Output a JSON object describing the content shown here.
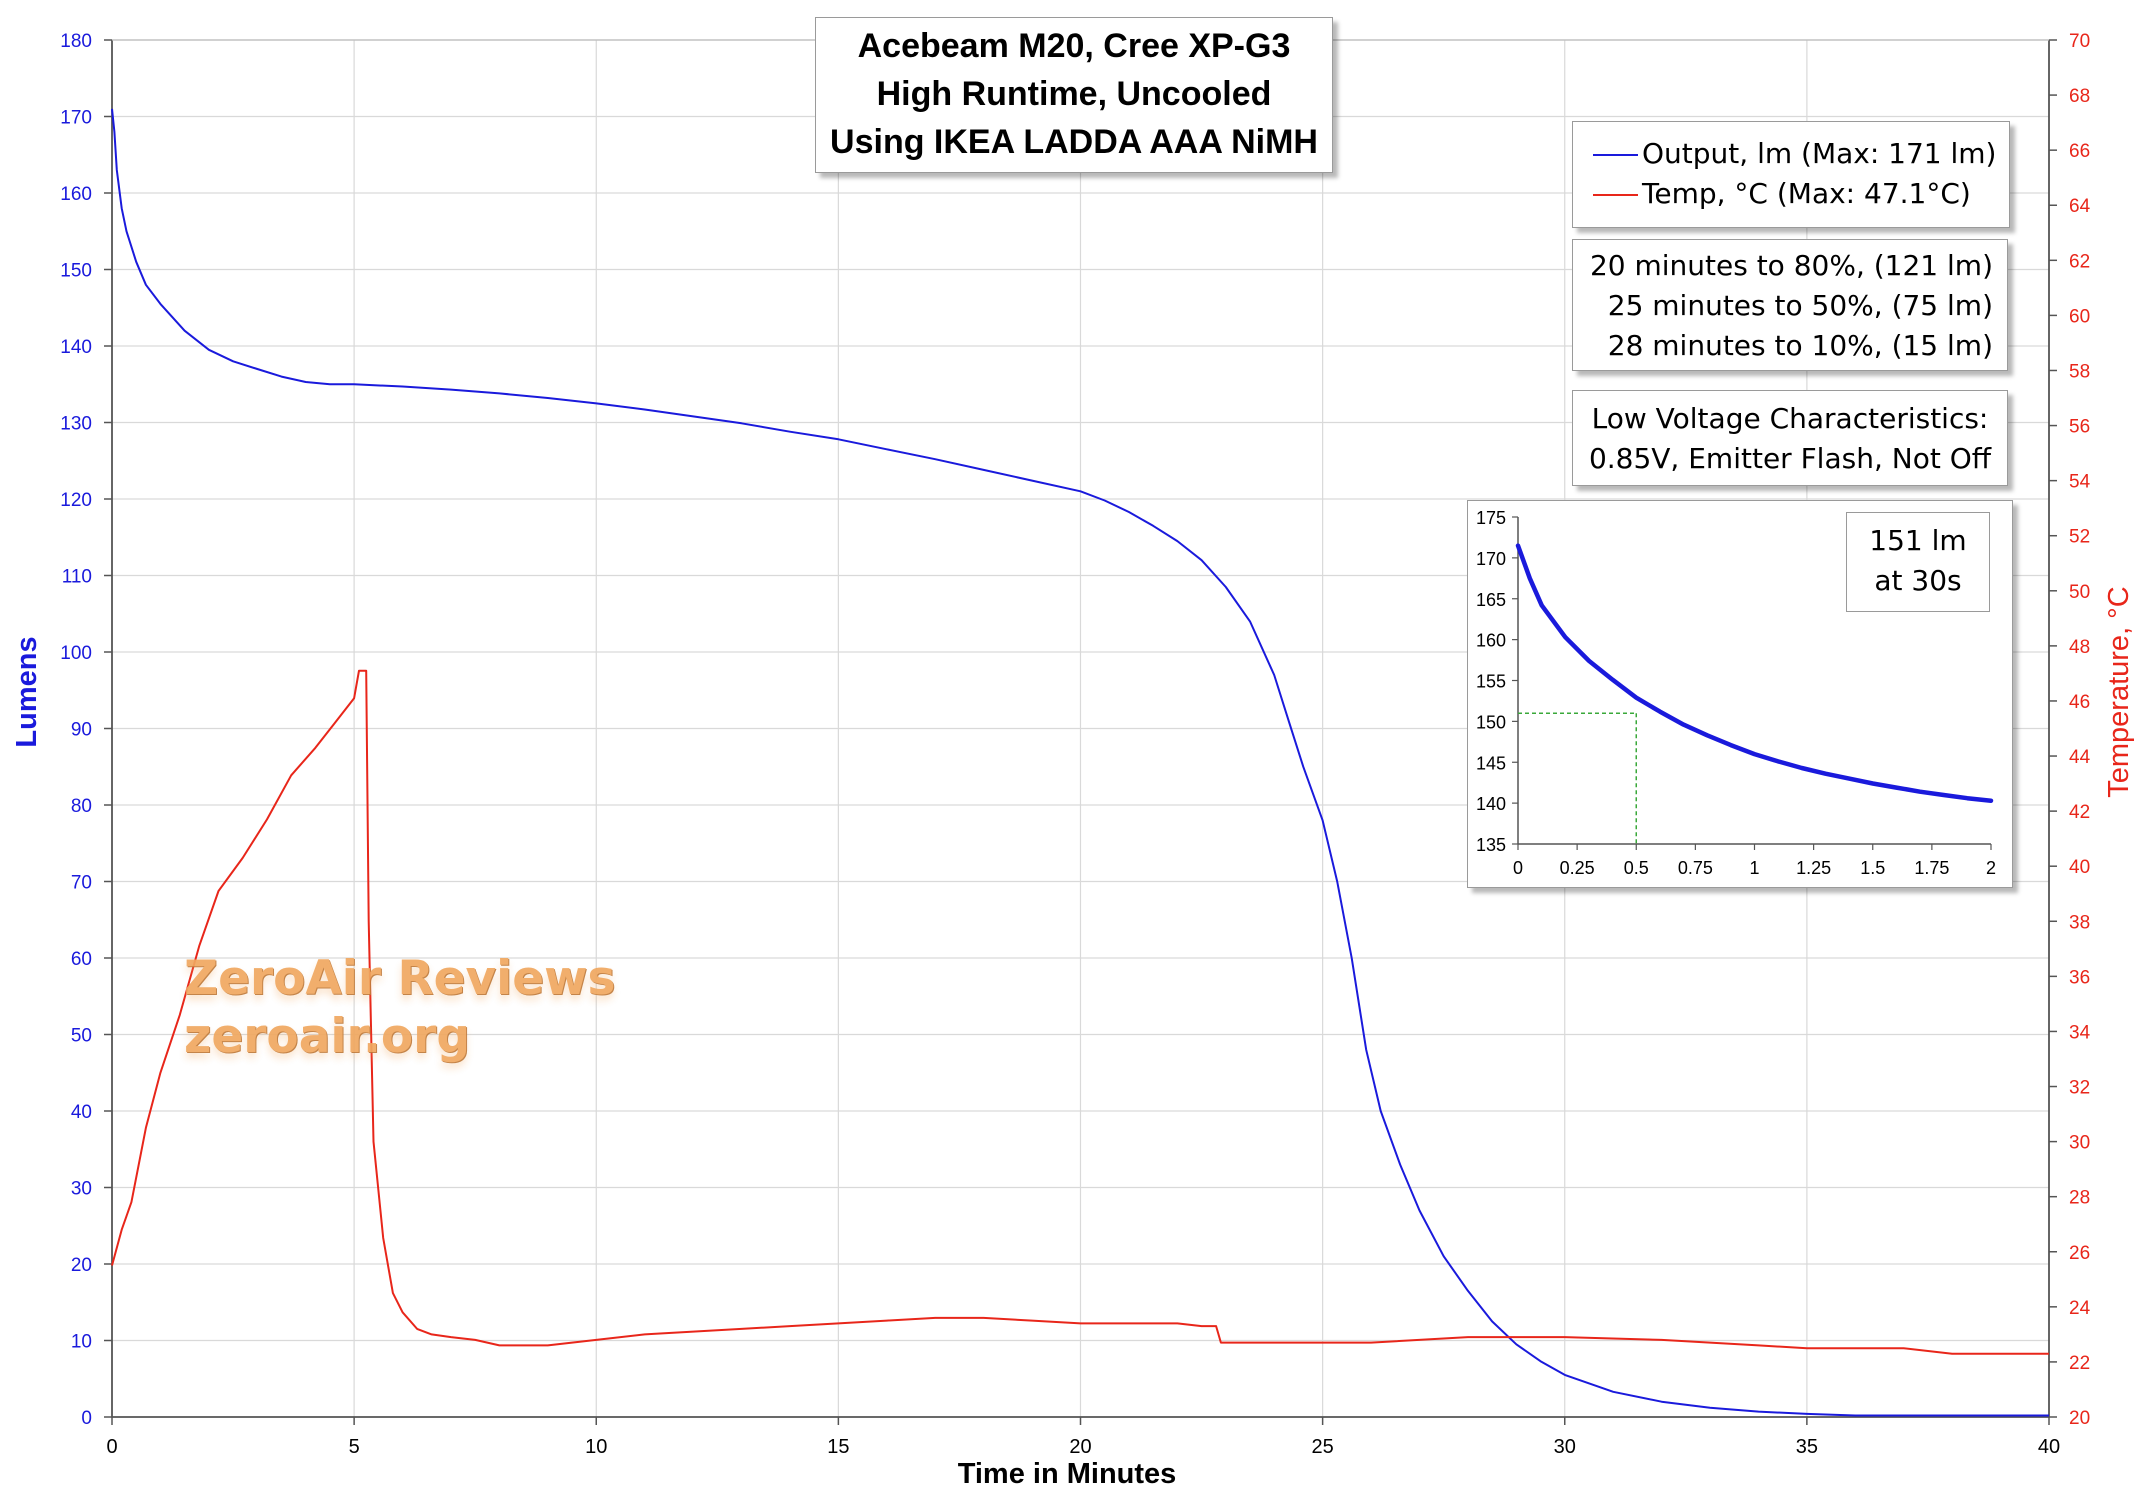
{
  "chart_data": {
    "type": "line",
    "title_lines": [
      "Acebeam M20, Cree XP-G3",
      "High Runtime, Uncooled",
      "Using IKEA LADDA AAA NiMH"
    ],
    "xlabel": "Time in Minutes",
    "ylabel": "Lumens",
    "y2label": "Temperature, °C",
    "xlim": [
      0,
      40
    ],
    "ylim": [
      0,
      180
    ],
    "y2lim": [
      20,
      70
    ],
    "x_ticks": [
      0,
      5,
      10,
      15,
      20,
      25,
      30,
      35,
      40
    ],
    "y_ticks": [
      0,
      10,
      20,
      30,
      40,
      50,
      60,
      70,
      80,
      90,
      100,
      110,
      120,
      130,
      140,
      150,
      160,
      170,
      180
    ],
    "y2_ticks": [
      20,
      22,
      24,
      26,
      28,
      30,
      32,
      34,
      36,
      38,
      40,
      42,
      44,
      46,
      48,
      50,
      52,
      54,
      56,
      58,
      60,
      62,
      64,
      66,
      68,
      70
    ],
    "grid": true,
    "series": [
      {
        "name": "Output, lm (Max: 171 lm)",
        "axis": "left",
        "color": "#1a1adc",
        "x": [
          0,
          0.05,
          0.1,
          0.2,
          0.3,
          0.5,
          0.7,
          1,
          1.5,
          2,
          2.5,
          3,
          3.5,
          4,
          4.5,
          5,
          6,
          7,
          8,
          9,
          10,
          11,
          12,
          13,
          14,
          15,
          16,
          17,
          18,
          19,
          20,
          20.5,
          21,
          21.5,
          22,
          22.5,
          23,
          23.5,
          24,
          24.3,
          24.6,
          25,
          25.3,
          25.6,
          25.9,
          26.2,
          26.6,
          27,
          27.5,
          28,
          28.5,
          29,
          29.5,
          30,
          31,
          32,
          33,
          34,
          35,
          36,
          37,
          38,
          39,
          40
        ],
        "y": [
          171,
          168,
          163,
          158,
          155,
          151,
          148,
          145.5,
          142,
          139.5,
          138,
          137,
          136,
          135.3,
          135,
          135,
          134.7,
          134.3,
          133.8,
          133.2,
          132.5,
          131.7,
          130.8,
          129.9,
          128.8,
          127.8,
          126.5,
          125.2,
          123.8,
          122.4,
          121,
          119.8,
          118.3,
          116.5,
          114.5,
          112,
          108.5,
          104,
          97,
          91,
          85,
          78,
          70,
          60,
          48,
          40,
          33,
          27,
          21,
          16.5,
          12.5,
          9.5,
          7.3,
          5.5,
          3.3,
          2,
          1.2,
          0.7,
          0.4,
          0.2,
          0.2,
          0.2,
          0.2,
          0.2
        ],
        "legend": "Output, lm (Max: 171 lm)"
      },
      {
        "name": "Temp, °C (Max: 47.1°C)",
        "axis": "right",
        "color": "#e8261a",
        "x": [
          0,
          0.2,
          0.4,
          0.7,
          1,
          1.4,
          1.8,
          2.2,
          2.7,
          3.2,
          3.7,
          4.2,
          4.6,
          5,
          5.1,
          5.25,
          5.3,
          5.4,
          5.6,
          5.8,
          6,
          6.3,
          6.6,
          7,
          7.5,
          8,
          9,
          10,
          11,
          12,
          13,
          14,
          15,
          16,
          17,
          18,
          19,
          20,
          21,
          22,
          22.5,
          22.8,
          22.9,
          24,
          26,
          28,
          30,
          32,
          34,
          35,
          36,
          37,
          38,
          39,
          40
        ],
        "y": [
          25.5,
          26.8,
          27.8,
          30.5,
          32.5,
          34.6,
          37.1,
          39.1,
          40.3,
          41.7,
          43.3,
          44.3,
          45.2,
          46.1,
          47.1,
          47.1,
          38,
          30,
          26.5,
          24.5,
          23.8,
          23.2,
          23.0,
          22.9,
          22.8,
          22.6,
          22.6,
          22.8,
          23.0,
          23.1,
          23.2,
          23.3,
          23.4,
          23.5,
          23.6,
          23.6,
          23.5,
          23.4,
          23.4,
          23.4,
          23.3,
          23.3,
          22.7,
          22.7,
          22.7,
          22.9,
          22.9,
          22.8,
          22.6,
          22.5,
          22.5,
          22.5,
          22.3,
          22.3,
          22.3
        ],
        "legend": "Temp, °C (Max: 47.1°C)"
      }
    ],
    "annotations": {
      "runtime_lines": [
        "20 minutes to 80%, (121 lm)",
        "25 minutes to 50%, (75 lm)",
        "28 minutes to 10%, (15 lm)"
      ],
      "low_voltage_lines": [
        "Low Voltage Characteristics:",
        "0.85V, Emitter Flash, Not Off"
      ]
    },
    "inset": {
      "type": "line",
      "xlim": [
        0,
        2
      ],
      "ylim": [
        135,
        175
      ],
      "x_ticks": [
        0,
        0.25,
        0.5,
        0.75,
        1,
        1.25,
        1.5,
        1.75,
        2
      ],
      "x_tick_labels": [
        "0",
        "0.25",
        "0.5",
        "0.75",
        "1",
        "1.25",
        "1.5",
        "1.75",
        "2"
      ],
      "y_ticks": [
        135,
        140,
        145,
        150,
        155,
        160,
        165,
        170,
        175
      ],
      "series": [
        {
          "color": "#1a1adc",
          "x": [
            0,
            0.05,
            0.1,
            0.2,
            0.3,
            0.4,
            0.5,
            0.6,
            0.7,
            0.8,
            0.9,
            1.0,
            1.1,
            1.2,
            1.3,
            1.4,
            1.5,
            1.6,
            1.7,
            1.8,
            1.9,
            2.0
          ],
          "y": [
            171.5,
            167.5,
            164.2,
            160.3,
            157.4,
            155.1,
            152.9,
            151.2,
            149.6,
            148.3,
            147.1,
            146.0,
            145.1,
            144.3,
            143.6,
            143.0,
            142.4,
            141.9,
            141.4,
            141.0,
            140.6,
            140.3
          ]
        }
      ],
      "marker": {
        "x": 0.5,
        "y": 151,
        "color": "#3aa83a"
      },
      "label_lines": [
        "151 lm",
        "at 30s"
      ]
    },
    "watermark_lines": [
      "ZeroAir Reviews",
      "zeroair.org"
    ]
  }
}
